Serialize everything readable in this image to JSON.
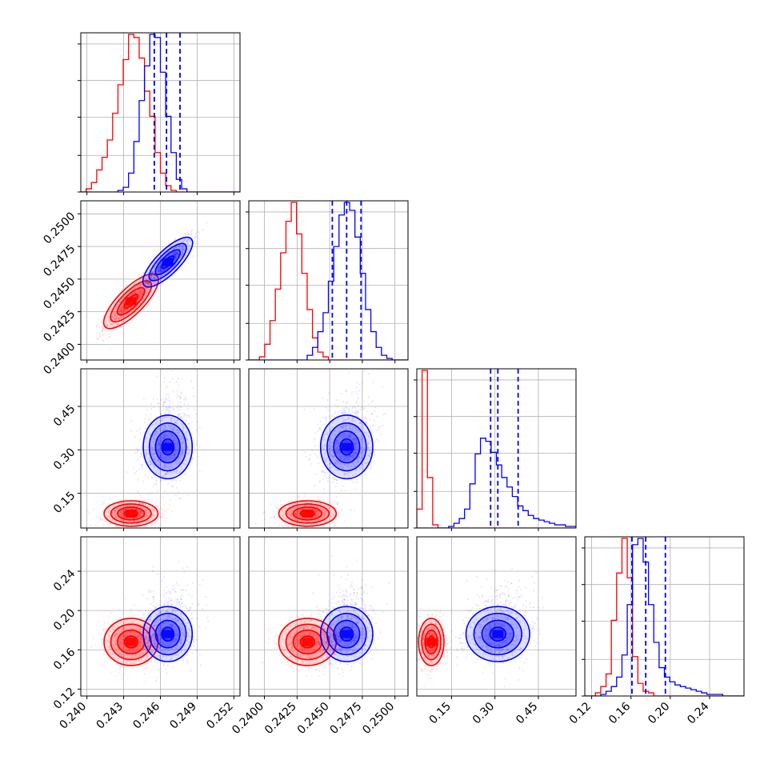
{
  "chart_data": {
    "type": "scatter",
    "kind": "corner-plot",
    "grid": true,
    "colors": {
      "red": "#ff0000",
      "blue": "#0000ff"
    },
    "series": [
      {
        "color": "#ff0000",
        "mean": [
          0.2436,
          0.2433,
          0.08,
          0.168
        ],
        "sd": [
          0.0011,
          0.0011,
          0.022,
          0.012
        ],
        "hist": [
          [
            0,
            2,
            6,
            14,
            22,
            33,
            50,
            68,
            84,
            100,
            98,
            85,
            64,
            48,
            25,
            12,
            4,
            1,
            0,
            0,
            0,
            0,
            0,
            0,
            0,
            0,
            0,
            0,
            0,
            0
          ],
          [
            0,
            0,
            2,
            10,
            25,
            45,
            68,
            88,
            100,
            80,
            55,
            32,
            14,
            5,
            2,
            0,
            0,
            0,
            0,
            0,
            0,
            0,
            0,
            0,
            0,
            0,
            0,
            0,
            0,
            0
          ],
          [
            12,
            100,
            32,
            2,
            0,
            0,
            0,
            0,
            0,
            0,
            0,
            0,
            0,
            0,
            0,
            0,
            0,
            0,
            0,
            0,
            0,
            0,
            0,
            0,
            0,
            0,
            0,
            0,
            0,
            0
          ],
          [
            0,
            0,
            2,
            6,
            14,
            48,
            78,
            100,
            75,
            25,
            8,
            3,
            2,
            0,
            0,
            0,
            0,
            0,
            0,
            0,
            0,
            0,
            0,
            0,
            0,
            0,
            0,
            0,
            0,
            0
          ]
        ]
      },
      {
        "color": "#0000ff",
        "mean": [
          0.2466,
          0.2463,
          0.31,
          0.176
        ],
        "sd": [
          0.001,
          0.001,
          0.055,
          0.014
        ],
        "quantiles": [
          [
            0.2455,
            0.2465,
            0.2476
          ],
          [
            0.2452,
            0.2463,
            0.2474
          ],
          [
            0.285,
            0.31,
            0.38
          ],
          [
            0.161,
            0.175,
            0.195
          ]
        ],
        "hist": [
          [
            0,
            0,
            0,
            0,
            0,
            0,
            0,
            1,
            3,
            12,
            32,
            58,
            80,
            100,
            98,
            76,
            48,
            25,
            8,
            2,
            0,
            0,
            0,
            0,
            0,
            0,
            0,
            0,
            0,
            0
          ],
          [
            0,
            0,
            0,
            0,
            0,
            0,
            0,
            0,
            0,
            0,
            0,
            3,
            8,
            18,
            30,
            50,
            72,
            92,
            100,
            95,
            78,
            55,
            32,
            18,
            8,
            3,
            1,
            0,
            0,
            0
          ],
          [
            0,
            0,
            0,
            0,
            0,
            0,
            1,
            3,
            6,
            12,
            28,
            47,
            57,
            55,
            48,
            40,
            32,
            26,
            20,
            14,
            11,
            8,
            6,
            5,
            4,
            3,
            2,
            2,
            1,
            1
          ],
          [
            0,
            0,
            0,
            1,
            3,
            6,
            12,
            26,
            58,
            96,
            100,
            85,
            58,
            34,
            18,
            12,
            9,
            7,
            6,
            5,
            4,
            3,
            2,
            1,
            1,
            1,
            0,
            0,
            0,
            0
          ]
        ]
      }
    ],
    "params": [
      {
        "range": [
          0.2395,
          0.2525
        ],
        "ticks": [
          "0.240",
          "0.243",
          "0.246",
          "0.249",
          "0.252"
        ],
        "tick_values": [
          0.24,
          0.243,
          0.246,
          0.249,
          0.252
        ]
      },
      {
        "range": [
          0.2388,
          0.251
        ],
        "ticks": [
          "0.2400",
          "0.2425",
          "0.2450",
          "0.2475",
          "0.2500"
        ],
        "tick_values": [
          0.24,
          0.2425,
          0.245,
          0.2475,
          0.25
        ]
      },
      {
        "range": [
          0.03,
          0.58
        ],
        "ticks": [
          "0.15",
          "0.30",
          "0.45"
        ],
        "tick_values": [
          0.15,
          0.3,
          0.45
        ]
      },
      {
        "range": [
          0.113,
          0.275
        ],
        "ticks": [
          "0.12",
          "0.16",
          "0.20",
          "0.24"
        ],
        "tick_values": [
          0.12,
          0.16,
          0.2,
          0.24
        ]
      }
    ],
    "marginal_tick_fractions": [
      0,
      0.23,
      0.47,
      0.7,
      0.93
    ]
  }
}
